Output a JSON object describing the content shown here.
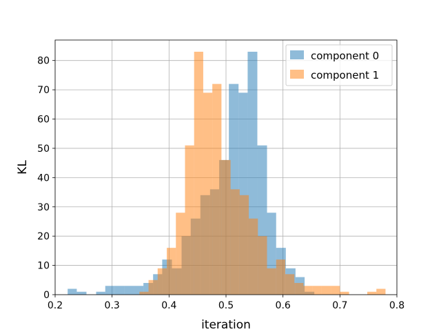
{
  "chart_data": {
    "type": "histogram",
    "title": "",
    "xlabel": "iteration",
    "ylabel": "KL",
    "xlim": [
      0.2,
      0.8
    ],
    "ylim": [
      0,
      87
    ],
    "xticks": [
      0.2,
      0.3,
      0.4,
      0.5,
      0.6,
      0.7,
      0.8
    ],
    "yticks": [
      0,
      10,
      20,
      30,
      40,
      50,
      60,
      70,
      80
    ],
    "grid": true,
    "legend_position": "top-right",
    "series": [
      {
        "name": "component 0",
        "color": "#1f77b4",
        "alpha": 0.5,
        "bins": [
          {
            "x0": 0.222,
            "x1": 0.238,
            "count": 2
          },
          {
            "x0": 0.238,
            "x1": 0.255,
            "count": 1
          },
          {
            "x0": 0.255,
            "x1": 0.272,
            "count": 0
          },
          {
            "x0": 0.272,
            "x1": 0.288,
            "count": 1
          },
          {
            "x0": 0.288,
            "x1": 0.305,
            "count": 3
          },
          {
            "x0": 0.305,
            "x1": 0.322,
            "count": 3
          },
          {
            "x0": 0.322,
            "x1": 0.338,
            "count": 3
          },
          {
            "x0": 0.338,
            "x1": 0.355,
            "count": 3
          },
          {
            "x0": 0.355,
            "x1": 0.372,
            "count": 4
          },
          {
            "x0": 0.372,
            "x1": 0.388,
            "count": 7
          },
          {
            "x0": 0.388,
            "x1": 0.405,
            "count": 12
          },
          {
            "x0": 0.405,
            "x1": 0.422,
            "count": 9
          },
          {
            "x0": 0.422,
            "x1": 0.438,
            "count": 20
          },
          {
            "x0": 0.438,
            "x1": 0.455,
            "count": 26
          },
          {
            "x0": 0.455,
            "x1": 0.472,
            "count": 34
          },
          {
            "x0": 0.472,
            "x1": 0.488,
            "count": 36
          },
          {
            "x0": 0.488,
            "x1": 0.505,
            "count": 46
          },
          {
            "x0": 0.505,
            "x1": 0.522,
            "count": 72
          },
          {
            "x0": 0.522,
            "x1": 0.538,
            "count": 69
          },
          {
            "x0": 0.538,
            "x1": 0.555,
            "count": 83
          },
          {
            "x0": 0.555,
            "x1": 0.572,
            "count": 51
          },
          {
            "x0": 0.572,
            "x1": 0.588,
            "count": 28
          },
          {
            "x0": 0.588,
            "x1": 0.605,
            "count": 16
          },
          {
            "x0": 0.605,
            "x1": 0.622,
            "count": 9
          },
          {
            "x0": 0.622,
            "x1": 0.638,
            "count": 6
          },
          {
            "x0": 0.638,
            "x1": 0.655,
            "count": 1
          }
        ]
      },
      {
        "name": "component 1",
        "color": "#ff7f0e",
        "alpha": 0.5,
        "bins": [
          {
            "x0": 0.348,
            "x1": 0.364,
            "count": 1
          },
          {
            "x0": 0.364,
            "x1": 0.38,
            "count": 5
          },
          {
            "x0": 0.38,
            "x1": 0.396,
            "count": 9
          },
          {
            "x0": 0.396,
            "x1": 0.412,
            "count": 16
          },
          {
            "x0": 0.412,
            "x1": 0.428,
            "count": 28
          },
          {
            "x0": 0.428,
            "x1": 0.444,
            "count": 51
          },
          {
            "x0": 0.444,
            "x1": 0.46,
            "count": 83
          },
          {
            "x0": 0.46,
            "x1": 0.476,
            "count": 69
          },
          {
            "x0": 0.476,
            "x1": 0.492,
            "count": 72
          },
          {
            "x0": 0.492,
            "x1": 0.508,
            "count": 46
          },
          {
            "x0": 0.508,
            "x1": 0.524,
            "count": 36
          },
          {
            "x0": 0.524,
            "x1": 0.54,
            "count": 34
          },
          {
            "x0": 0.54,
            "x1": 0.556,
            "count": 26
          },
          {
            "x0": 0.556,
            "x1": 0.572,
            "count": 20
          },
          {
            "x0": 0.572,
            "x1": 0.588,
            "count": 9
          },
          {
            "x0": 0.588,
            "x1": 0.604,
            "count": 12
          },
          {
            "x0": 0.604,
            "x1": 0.62,
            "count": 7
          },
          {
            "x0": 0.62,
            "x1": 0.636,
            "count": 4
          },
          {
            "x0": 0.636,
            "x1": 0.652,
            "count": 3
          },
          {
            "x0": 0.652,
            "x1": 0.668,
            "count": 3
          },
          {
            "x0": 0.668,
            "x1": 0.684,
            "count": 3
          },
          {
            "x0": 0.684,
            "x1": 0.7,
            "count": 3
          },
          {
            "x0": 0.7,
            "x1": 0.716,
            "count": 1
          },
          {
            "x0": 0.716,
            "x1": 0.732,
            "count": 0
          },
          {
            "x0": 0.732,
            "x1": 0.748,
            "count": 0
          },
          {
            "x0": 0.748,
            "x1": 0.764,
            "count": 1
          },
          {
            "x0": 0.764,
            "x1": 0.78,
            "count": 2
          }
        ]
      }
    ]
  }
}
